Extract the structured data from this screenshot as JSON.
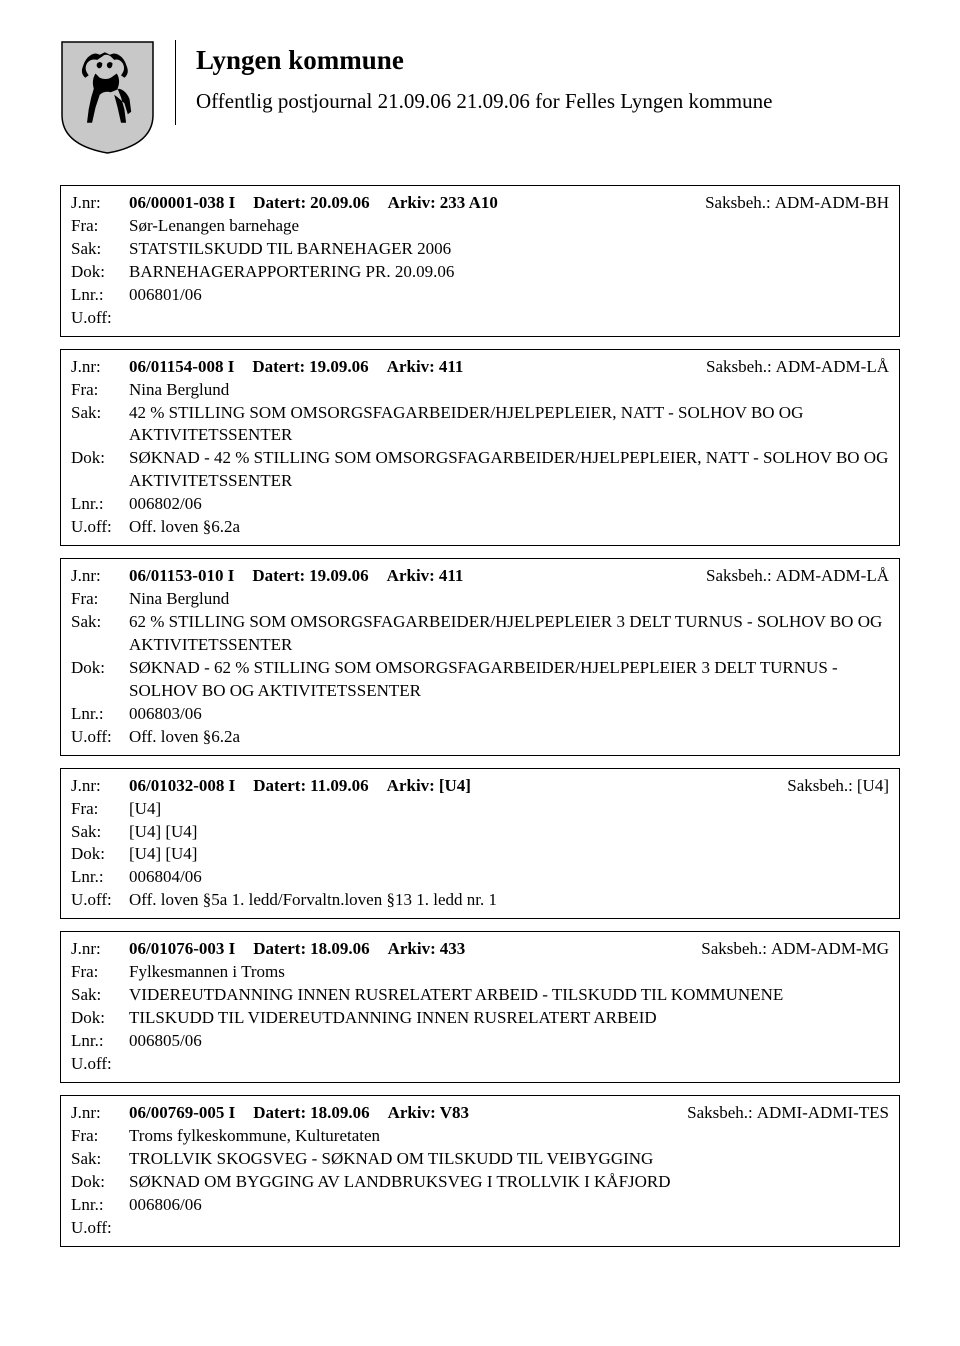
{
  "header": {
    "title": "Lyngen kommune",
    "subtitle": "Offentlig postjournal 21.09.06 21.09.06 for Felles Lyngen kommune"
  },
  "labels": {
    "jnr": "J.nr:",
    "datert": "Datert:",
    "arkiv": "Arkiv:",
    "saksbeh": "Saksbeh.:",
    "fra": "Fra:",
    "sak": "Sak:",
    "dok": "Dok:",
    "lnr": "Lnr.:",
    "uoff": "U.off:"
  },
  "entries": [
    {
      "jnr": "06/00001-038 I",
      "datert": "20.09.06",
      "arkiv": "233 A10",
      "saksbeh": "ADM-ADM-BH",
      "fra": "Sør-Lenangen barnehage",
      "sak": "STATSTILSKUDD TIL BARNEHAGER 2006",
      "dok": "BARNEHAGERAPPORTERING PR. 20.09.06",
      "lnr": "006801/06",
      "uoff": ""
    },
    {
      "jnr": "06/01154-008 I",
      "datert": "19.09.06",
      "arkiv": "411",
      "saksbeh": "ADM-ADM-LÅ",
      "fra": "Nina Berglund",
      "sak": "42 % STILLING SOM OMSORGSFAGARBEIDER/HJELPEPLEIER, NATT - SOLHOV BO OG AKTIVITETSSENTER",
      "dok": "SØKNAD - 42 % STILLING SOM OMSORGSFAGARBEIDER/HJELPEPLEIER, NATT - SOLHOV BO OG AKTIVITETSSENTER",
      "lnr": "006802/06",
      "uoff": "Off. loven §6.2a"
    },
    {
      "jnr": "06/01153-010 I",
      "datert": "19.09.06",
      "arkiv": "411",
      "saksbeh": "ADM-ADM-LÅ",
      "fra": "Nina Berglund",
      "sak": "62 % STILLING SOM OMSORGSFAGARBEIDER/HJELPEPLEIER 3 DELT TURNUS - SOLHOV BO OG AKTIVITETSSENTER",
      "dok": "SØKNAD - 62 % STILLING SOM OMSORGSFAGARBEIDER/HJELPEPLEIER 3 DELT TURNUS - SOLHOV BO OG AKTIVITETSSENTER",
      "lnr": "006803/06",
      "uoff": "Off. loven §6.2a"
    },
    {
      "jnr": "06/01032-008 I",
      "datert": "11.09.06",
      "arkiv": "[U4]",
      "saksbeh": "[U4]",
      "fra": "[U4]",
      "sak": "[U4] [U4]",
      "dok": "[U4] [U4]",
      "lnr": "006804/06",
      "uoff": "Off. loven §5a 1. ledd/Forvaltn.loven §13 1. ledd nr. 1"
    },
    {
      "jnr": "06/01076-003 I",
      "datert": "18.09.06",
      "arkiv": "433",
      "saksbeh": "ADM-ADM-MG",
      "fra": "Fylkesmannen i Troms",
      "sak": "VIDEREUTDANNING INNEN RUSRELATERT ARBEID - TILSKUDD TIL KOMMUNENE",
      "dok": "TILSKUDD TIL VIDEREUTDANNING INNEN RUSRELATERT ARBEID",
      "lnr": "006805/06",
      "uoff": ""
    },
    {
      "jnr": "06/00769-005 I",
      "datert": "18.09.06",
      "arkiv": "V83",
      "saksbeh": "ADMI-ADMI-TES",
      "fra": "Troms fylkeskommune, Kulturetaten",
      "sak": "TROLLVIK SKOGSVEG -   SØKNAD OM TILSKUDD TIL VEIBYGGING",
      "dok": "SØKNAD OM BYGGING AV LANDBRUKSVEG I TROLLVIK I KÅFJORD",
      "lnr": "006806/06",
      "uoff": ""
    }
  ]
}
